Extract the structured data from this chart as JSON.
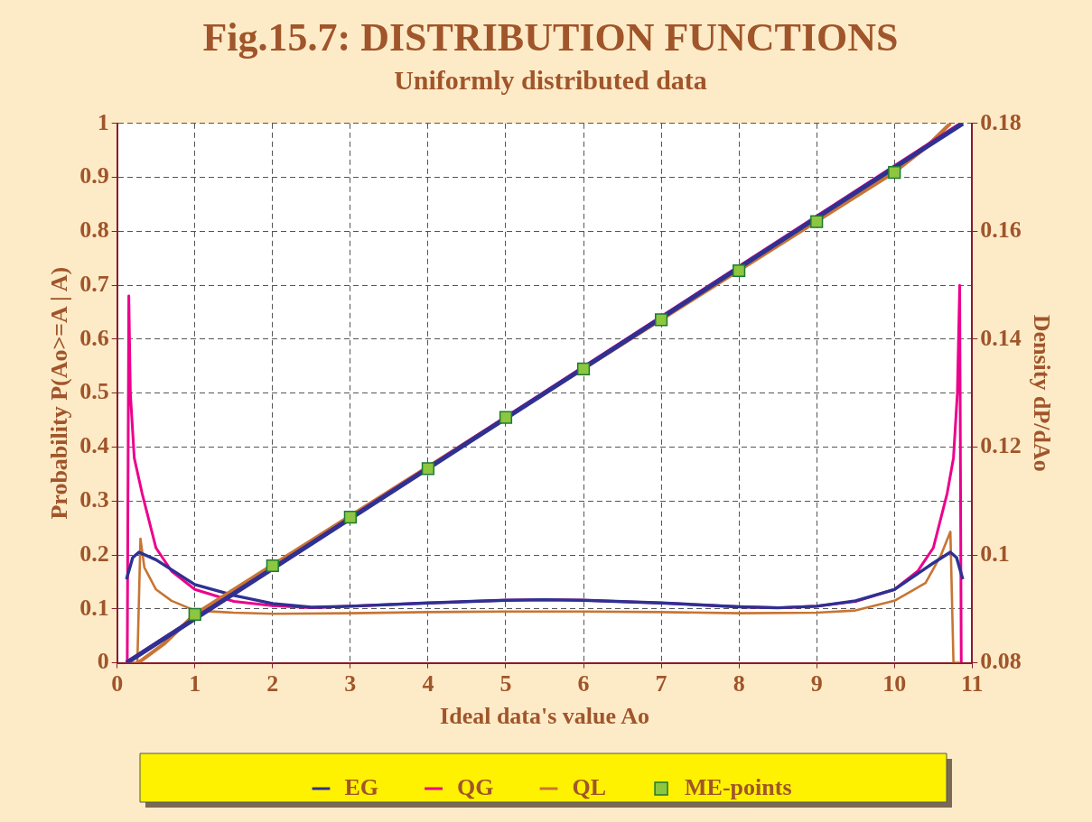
{
  "chart_data": {
    "type": "line",
    "title": "Fig.15.7: DISTRIBUTION FUNCTIONS",
    "subtitle": "Uniformly distributed data",
    "xlabel": "Ideal data's value Ao",
    "ylabel": "Probability P(Ao>=A | A)",
    "y2label": "Density dP/dAo",
    "xlim": [
      0,
      11
    ],
    "xticks": [
      0,
      1,
      2,
      3,
      4,
      5,
      6,
      7,
      8,
      9,
      10,
      11
    ],
    "ylim": [
      0,
      1
    ],
    "yticks": [
      0,
      0.1,
      0.2,
      0.3,
      0.4,
      0.5,
      0.6,
      0.7,
      0.8,
      0.9,
      1
    ],
    "y2lim": [
      0.08,
      0.18
    ],
    "y2ticks": [
      0.08,
      0.1,
      0.12,
      0.14,
      0.16,
      0.18
    ],
    "grid": true,
    "legend": "bottom",
    "line_style": "solid",
    "series": [
      {
        "name": "EG",
        "color": "#2e3192",
        "marker": "none",
        "x": [
          0.12,
          10.88
        ],
        "values": [
          0,
          1
        ]
      },
      {
        "name": "QG",
        "color": "#ec008c",
        "marker": "none",
        "x": [
          0.12,
          10.86
        ],
        "values": [
          0,
          1
        ]
      },
      {
        "name": "QL",
        "color": "#c87533",
        "marker": "none",
        "x": [
          0.27,
          0.6,
          1,
          10,
          10.4,
          10.72
        ],
        "values": [
          0,
          0.035,
          0.09,
          0.91,
          0.955,
          1
        ]
      },
      {
        "name": "ME-points",
        "type": "scatter",
        "color": "#8dc63f",
        "marker": "square",
        "x": [
          1,
          2,
          3,
          4,
          5,
          6,
          7,
          8,
          9,
          10
        ],
        "values": [
          0.09,
          0.18,
          0.27,
          0.36,
          0.455,
          0.545,
          0.636,
          0.727,
          0.818,
          0.909
        ]
      },
      {
        "color": "#2e3192",
        "axis": "y2",
        "marker": "none",
        "x": [
          0.12,
          0.2,
          0.28,
          0.5,
          1,
          1.5,
          2,
          2.5,
          3,
          4,
          5,
          5.5,
          6,
          7,
          8,
          8.5,
          9,
          9.5,
          10,
          10.5,
          10.72,
          10.8,
          10.88
        ],
        "values": [
          0.0955,
          0.0995,
          0.1005,
          0.0991,
          0.0945,
          0.0925,
          0.091,
          0.0903,
          0.0905,
          0.0911,
          0.0916,
          0.0917,
          0.0916,
          0.0911,
          0.0904,
          0.0902,
          0.0905,
          0.0915,
          0.0936,
          0.0985,
          0.1005,
          0.0995,
          0.0955
        ]
      },
      {
        "color": "#ec008c",
        "axis": "y2",
        "marker": "none",
        "x": [
          0.13,
          0.15,
          0.17,
          0.22,
          0.32,
          0.5,
          0.7,
          1,
          1.5,
          2,
          2.5,
          3,
          4,
          5,
          5.5,
          6,
          7,
          8,
          8.5,
          9,
          9.5,
          10,
          10.3,
          10.5,
          10.68,
          10.76,
          10.81,
          10.84,
          10.86
        ],
        "values": [
          0.08,
          0.148,
          0.13,
          0.118,
          0.1115,
          0.1013,
          0.097,
          0.0936,
          0.0914,
          0.0906,
          0.0902,
          0.0905,
          0.0911,
          0.0916,
          0.0917,
          0.0916,
          0.0911,
          0.0904,
          0.0902,
          0.0905,
          0.0914,
          0.0936,
          0.097,
          0.1013,
          0.1115,
          0.118,
          0.13,
          0.15,
          0.08
        ]
      },
      {
        "color": "#c87533",
        "axis": "y2",
        "marker": "none",
        "x": [
          0.11,
          0.26,
          0.3,
          0.35,
          0.5,
          0.7,
          1,
          1.5,
          2,
          3,
          4,
          5,
          5.5,
          6,
          7,
          8,
          9,
          9.5,
          10,
          10.4,
          10.6,
          10.72,
          10.76,
          10.84
        ],
        "values": [
          0.08,
          0.08,
          0.103,
          0.0977,
          0.0936,
          0.0915,
          0.0897,
          0.0893,
          0.0891,
          0.0892,
          0.0894,
          0.0895,
          0.0895,
          0.0895,
          0.0894,
          0.0892,
          0.0893,
          0.0897,
          0.0915,
          0.0948,
          0.1,
          0.1043,
          0.08,
          0.08
        ]
      }
    ]
  }
}
